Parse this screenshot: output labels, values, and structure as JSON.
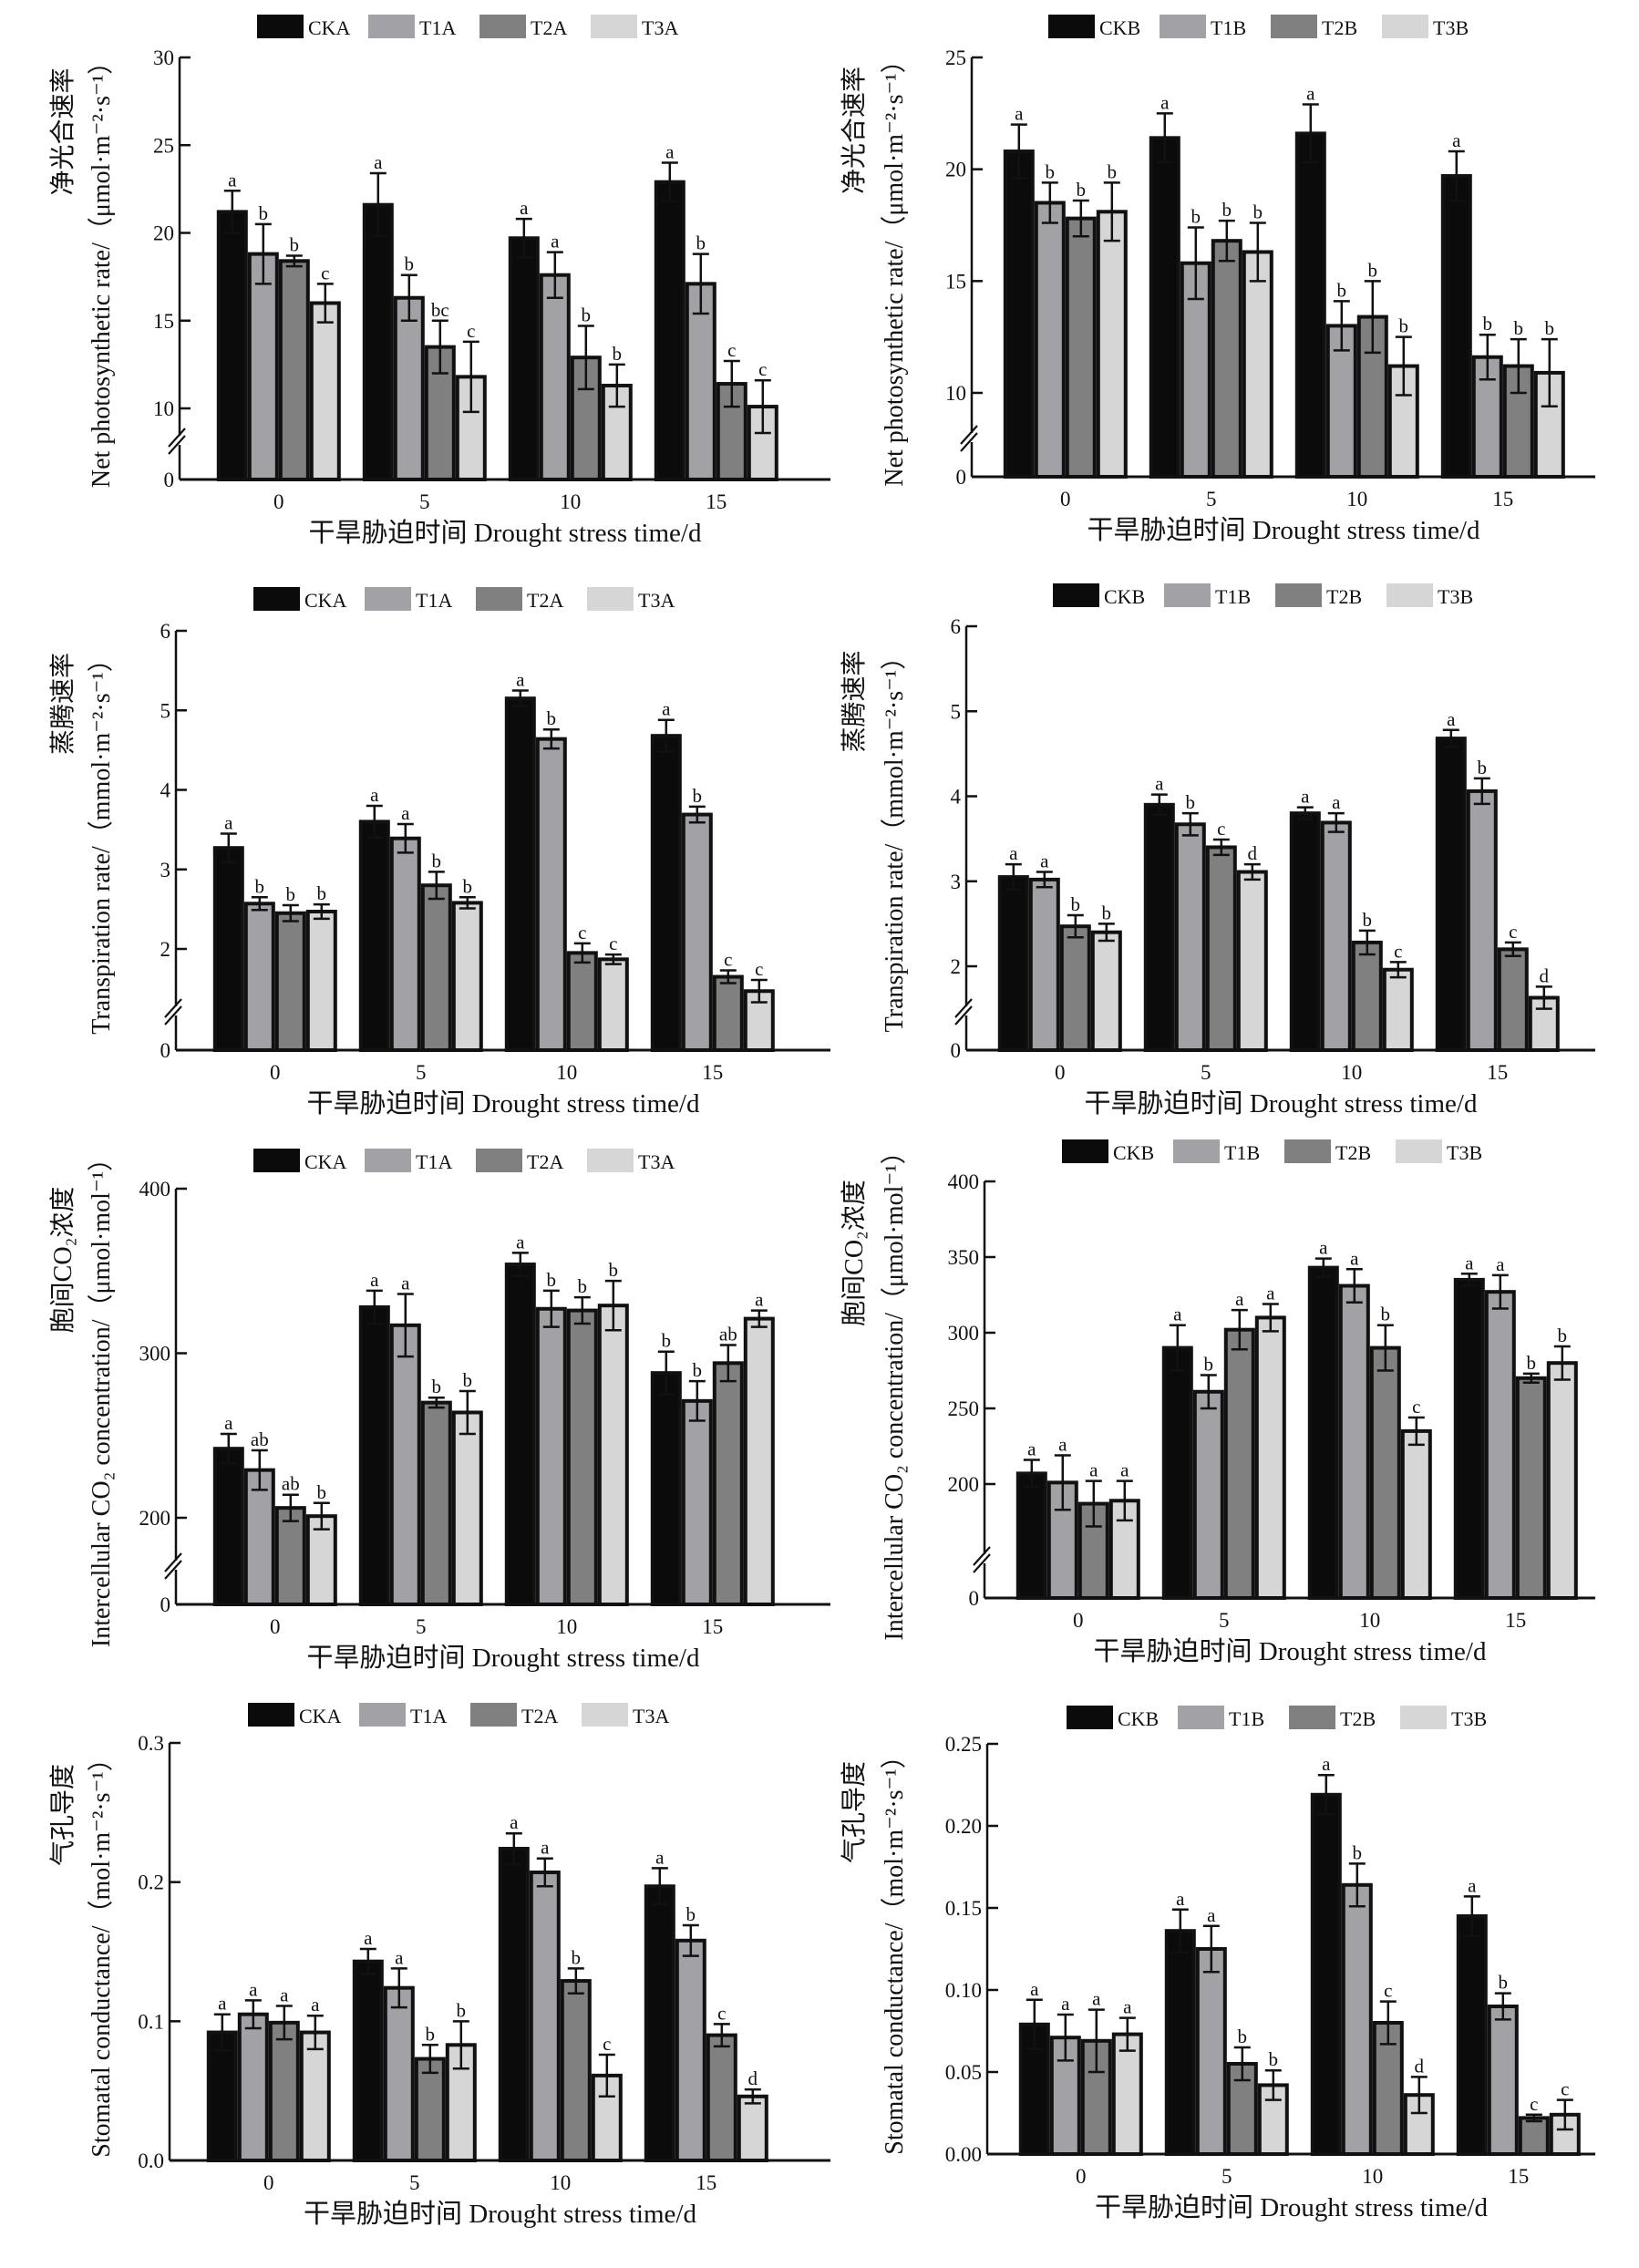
{
  "chart_data": [
    {
      "type": "bar",
      "categories": [
        "0",
        "5",
        "10",
        "15"
      ],
      "xlabel": "干旱胁迫时间 Drought stress time/d",
      "ylabel_zh": "净光合速率",
      "ylabel": "Net photosynthetic rate/（μmol·m⁻²·s⁻¹）",
      "yticks": [
        0,
        10,
        15,
        20,
        25,
        30
      ],
      "ylim": [
        0,
        30
      ],
      "axis_break": [
        0,
        10
      ],
      "legend": "top",
      "series": [
        {
          "name": "CKA",
          "color": "#0b0b0b",
          "values": [
            21.2,
            21.6,
            19.7,
            22.9
          ],
          "errors": [
            1.2,
            1.8,
            1.1,
            1.1
          ],
          "letters": [
            "a",
            "a",
            "a",
            "a"
          ]
        },
        {
          "name": "T1A",
          "color": "#a2a1a6",
          "values": [
            18.8,
            16.3,
            17.6,
            17.1
          ],
          "errors": [
            1.7,
            1.3,
            1.3,
            1.7
          ],
          "letters": [
            "b",
            "b",
            "a",
            "b"
          ]
        },
        {
          "name": "T2A",
          "color": "#808080",
          "values": [
            18.4,
            13.5,
            12.9,
            11.4
          ],
          "errors": [
            0.3,
            1.5,
            1.8,
            1.3
          ],
          "letters": [
            "b",
            "bc",
            "b",
            "c"
          ]
        },
        {
          "name": "T3A",
          "color": "#d6d6d6",
          "values": [
            16.0,
            11.8,
            11.3,
            10.1
          ],
          "errors": [
            1.1,
            2.0,
            1.2,
            1.5
          ],
          "letters": [
            "c",
            "c",
            "b",
            "c"
          ]
        }
      ]
    },
    {
      "type": "bar",
      "categories": [
        "0",
        "5",
        "10",
        "15"
      ],
      "xlabel": "干旱胁迫时间 Drought stress time/d",
      "ylabel_zh": "净光合速率",
      "ylabel": "Net photosynthetic rate/（μmol·m⁻²·s⁻¹）",
      "yticks": [
        0,
        10,
        15,
        20,
        25
      ],
      "ylim": [
        0,
        25
      ],
      "axis_break": [
        0,
        10
      ],
      "legend": "top",
      "series": [
        {
          "name": "CKB",
          "color": "#0b0b0b",
          "values": [
            20.8,
            21.4,
            21.6,
            19.7
          ],
          "errors": [
            1.2,
            1.1,
            1.3,
            1.1
          ],
          "letters": [
            "a",
            "a",
            "a",
            "a"
          ]
        },
        {
          "name": "T1B",
          "color": "#a2a1a6",
          "values": [
            18.5,
            15.8,
            13.0,
            11.6
          ],
          "errors": [
            0.9,
            1.6,
            1.1,
            1.0
          ],
          "letters": [
            "b",
            "b",
            "b",
            "b"
          ]
        },
        {
          "name": "T2B",
          "color": "#808080",
          "values": [
            17.8,
            16.8,
            13.4,
            11.2
          ],
          "errors": [
            0.8,
            0.9,
            1.6,
            1.2
          ],
          "letters": [
            "b",
            "b",
            "b",
            "b"
          ]
        },
        {
          "name": "T3B",
          "color": "#d6d6d6",
          "values": [
            18.1,
            16.3,
            11.2,
            10.9
          ],
          "errors": [
            1.3,
            1.3,
            1.3,
            1.5
          ],
          "letters": [
            "b",
            "b",
            "b",
            "b"
          ]
        }
      ]
    },
    {
      "type": "bar",
      "categories": [
        "0",
        "5",
        "10",
        "15"
      ],
      "xlabel": "干旱胁迫时间 Drought stress time/d",
      "ylabel_zh": "蒸腾速率",
      "ylabel": "Transpiration rate/（mmol·m⁻²·s⁻¹）",
      "yticks": [
        0,
        2,
        3,
        4,
        5,
        6
      ],
      "ylim": [
        0,
        6
      ],
      "axis_break": [
        0,
        2
      ],
      "legend": "top",
      "series": [
        {
          "name": "CKA",
          "color": "#0b0b0b",
          "values": [
            3.27,
            3.6,
            5.15,
            4.68
          ],
          "errors": [
            0.18,
            0.2,
            0.1,
            0.2
          ],
          "letters": [
            "a",
            "a",
            "a",
            "a"
          ]
        },
        {
          "name": "T1A",
          "color": "#a2a1a6",
          "values": [
            2.57,
            3.39,
            4.64,
            3.69
          ],
          "errors": [
            0.08,
            0.18,
            0.12,
            0.1
          ],
          "letters": [
            "b",
            "a",
            "b",
            "b"
          ]
        },
        {
          "name": "T2A",
          "color": "#808080",
          "values": [
            2.45,
            2.8,
            1.95,
            1.65
          ],
          "errors": [
            0.1,
            0.17,
            0.12,
            0.08
          ],
          "letters": [
            "b",
            "b",
            "c",
            "c"
          ]
        },
        {
          "name": "T3A",
          "color": "#d6d6d6",
          "values": [
            2.47,
            2.58,
            1.87,
            1.47
          ],
          "errors": [
            0.09,
            0.07,
            0.06,
            0.14
          ],
          "letters": [
            "b",
            "b",
            "c",
            "c"
          ]
        }
      ]
    },
    {
      "type": "bar",
      "categories": [
        "0",
        "5",
        "10",
        "15"
      ],
      "xlabel": "干旱胁迫时间 Drought stress time/d",
      "ylabel_zh": "蒸腾速率",
      "ylabel": "Transpiration rate/（mmol·m⁻²·s⁻¹）",
      "yticks": [
        0,
        2,
        3,
        4,
        5,
        6
      ],
      "ylim": [
        0,
        6
      ],
      "axis_break": [
        0,
        2
      ],
      "legend": "top",
      "series": [
        {
          "name": "CKB",
          "color": "#0b0b0b",
          "values": [
            3.05,
            3.9,
            3.8,
            4.68
          ],
          "errors": [
            0.15,
            0.12,
            0.07,
            0.1
          ],
          "letters": [
            "a",
            "a",
            "a",
            "a"
          ]
        },
        {
          "name": "T1B",
          "color": "#a2a1a6",
          "values": [
            3.02,
            3.67,
            3.69,
            4.06
          ],
          "errors": [
            0.09,
            0.13,
            0.11,
            0.15
          ],
          "letters": [
            "a",
            "b",
            "a",
            "b"
          ]
        },
        {
          "name": "T2B",
          "color": "#808080",
          "values": [
            2.47,
            3.4,
            2.28,
            2.2
          ],
          "errors": [
            0.13,
            0.09,
            0.14,
            0.08
          ],
          "letters": [
            "b",
            "c",
            "b",
            "c"
          ]
        },
        {
          "name": "T3B",
          "color": "#d6d6d6",
          "values": [
            2.4,
            3.11,
            1.96,
            1.63
          ],
          "errors": [
            0.1,
            0.09,
            0.09,
            0.13
          ],
          "letters": [
            "b",
            "d",
            "c",
            "d"
          ]
        }
      ]
    },
    {
      "type": "bar",
      "categories": [
        "0",
        "5",
        "10",
        "15"
      ],
      "xlabel": "干旱胁迫时间 Drought stress time/d",
      "ylabel_zh": "胞间CO₂浓度",
      "ylabel": "Intercellular CO₂ concentration/（μmol·mol⁻¹）",
      "yticks": [
        0,
        200,
        300,
        400
      ],
      "ylim": [
        0,
        400
      ],
      "axis_break": [
        0,
        200
      ],
      "legend": "top",
      "series": [
        {
          "name": "CKA",
          "color": "#0b0b0b",
          "values": [
            242,
            328,
            354,
            288
          ],
          "errors": [
            9,
            10,
            7,
            13
          ],
          "letters": [
            "a",
            "a",
            "a",
            "b"
          ]
        },
        {
          "name": "T1A",
          "color": "#a2a1a6",
          "values": [
            229,
            317,
            327,
            271
          ],
          "errors": [
            12,
            19,
            11,
            12
          ],
          "letters": [
            "ab",
            "a",
            "b",
            "b"
          ]
        },
        {
          "name": "T2A",
          "color": "#808080",
          "values": [
            206,
            270,
            326,
            294
          ],
          "errors": [
            8,
            3,
            8,
            11
          ],
          "letters": [
            "ab",
            "b",
            "b",
            "ab"
          ]
        },
        {
          "name": "T3A",
          "color": "#d6d6d6",
          "values": [
            201,
            264,
            329,
            321
          ],
          "errors": [
            8,
            13,
            15,
            5
          ],
          "letters": [
            "b",
            "b",
            "b",
            "a"
          ]
        }
      ]
    },
    {
      "type": "bar",
      "categories": [
        "0",
        "5",
        "10",
        "15"
      ],
      "xlabel": "干旱胁迫时间 Drought stress time/d",
      "ylabel_zh": "胞间CO₂浓度",
      "ylabel": "Intercellular CO₂ concentration/（μmol·mol⁻¹）",
      "yticks": [
        0,
        200,
        250,
        300,
        350,
        400
      ],
      "ylim": [
        0,
        400
      ],
      "axis_break": [
        0,
        200
      ],
      "legend": "top",
      "series": [
        {
          "name": "CKB",
          "color": "#0b0b0b",
          "values": [
            207,
            290,
            343,
            335
          ],
          "errors": [
            9,
            15,
            6,
            4
          ],
          "letters": [
            "a",
            "a",
            "a",
            "a"
          ]
        },
        {
          "name": "T1B",
          "color": "#a2a1a6",
          "values": [
            201,
            261,
            331,
            327
          ],
          "errors": [
            18,
            11,
            11,
            11
          ],
          "letters": [
            "a",
            "b",
            "a",
            "a"
          ]
        },
        {
          "name": "T2B",
          "color": "#808080",
          "values": [
            187,
            302,
            290,
            270
          ],
          "errors": [
            15,
            13,
            15,
            3
          ],
          "letters": [
            "a",
            "a",
            "b",
            "b"
          ]
        },
        {
          "name": "T3B",
          "color": "#d6d6d6",
          "values": [
            189,
            310,
            235,
            280
          ],
          "errors": [
            13,
            9,
            9,
            11
          ],
          "letters": [
            "a",
            "a",
            "c",
            "b"
          ]
        }
      ]
    },
    {
      "type": "bar",
      "categories": [
        "0",
        "5",
        "10",
        "15"
      ],
      "xlabel": "干旱胁迫时间 Drought stress time/d",
      "ylabel_zh": "气孔导度",
      "ylabel": "Stomatal conductance/（mol·m⁻²·s⁻¹）",
      "yticks": [
        "0.0",
        "0.1",
        "0.2",
        "0.3"
      ],
      "ylim": [
        0,
        0.3
      ],
      "legend": "top",
      "series": [
        {
          "name": "CKA",
          "color": "#0b0b0b",
          "values": [
            0.092,
            0.143,
            0.224,
            0.197
          ],
          "errors": [
            0.013,
            0.009,
            0.011,
            0.013
          ],
          "letters": [
            "a",
            "a",
            "a",
            "a"
          ]
        },
        {
          "name": "T1A",
          "color": "#a2a1a6",
          "values": [
            0.105,
            0.124,
            0.207,
            0.158
          ],
          "errors": [
            0.01,
            0.014,
            0.01,
            0.011
          ],
          "letters": [
            "a",
            "a",
            "a",
            "b"
          ]
        },
        {
          "name": "T2A",
          "color": "#808080",
          "values": [
            0.099,
            0.073,
            0.129,
            0.09
          ],
          "errors": [
            0.012,
            0.01,
            0.009,
            0.008
          ],
          "letters": [
            "a",
            "b",
            "b",
            "c"
          ]
        },
        {
          "name": "T3A",
          "color": "#d6d6d6",
          "values": [
            0.092,
            0.083,
            0.061,
            0.046
          ],
          "errors": [
            0.012,
            0.017,
            0.015,
            0.005
          ],
          "letters": [
            "a",
            "b",
            "c",
            "d"
          ]
        }
      ]
    },
    {
      "type": "bar",
      "categories": [
        "0",
        "5",
        "10",
        "15"
      ],
      "xlabel": "干旱胁迫时间 Drought stress time/d",
      "ylabel_zh": "气孔导度",
      "ylabel": "Stomatal conductance/（mol·m⁻²·s⁻¹）",
      "yticks": [
        "0.00",
        "0.05",
        "0.10",
        "0.15",
        "0.20",
        "0.25"
      ],
      "ylim": [
        0,
        0.25
      ],
      "legend": "top",
      "series": [
        {
          "name": "CKB",
          "color": "#0b0b0b",
          "values": [
            0.079,
            0.136,
            0.219,
            0.145
          ],
          "errors": [
            0.015,
            0.013,
            0.012,
            0.012
          ],
          "letters": [
            "a",
            "a",
            "a",
            "a"
          ]
        },
        {
          "name": "T1B",
          "color": "#a2a1a6",
          "values": [
            0.071,
            0.125,
            0.164,
            0.09
          ],
          "errors": [
            0.014,
            0.014,
            0.013,
            0.008
          ],
          "letters": [
            "a",
            "a",
            "b",
            "b"
          ]
        },
        {
          "name": "T2B",
          "color": "#808080",
          "values": [
            0.069,
            0.055,
            0.08,
            0.022
          ],
          "errors": [
            0.019,
            0.01,
            0.013,
            0.002
          ],
          "letters": [
            "a",
            "b",
            "c",
            "c"
          ]
        },
        {
          "name": "T3B",
          "color": "#d6d6d6",
          "values": [
            0.073,
            0.042,
            0.036,
            0.024
          ],
          "errors": [
            0.01,
            0.009,
            0.011,
            0.009
          ],
          "letters": [
            "a",
            "b",
            "d",
            "c"
          ]
        }
      ]
    }
  ]
}
